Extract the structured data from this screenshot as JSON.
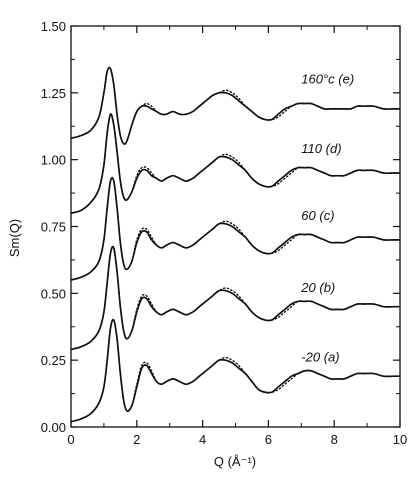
{
  "chart_data": {
    "type": "line",
    "title": "",
    "xlabel": "Q (Å⁻¹)",
    "ylabel": "Sm(Q)",
    "xlim": [
      0,
      10
    ],
    "ylim": [
      0,
      1.5
    ],
    "xticks": [
      "0",
      "2",
      "4",
      "6",
      "8",
      "10"
    ],
    "yticks": [
      "0.00",
      "0.25",
      "0.50",
      "0.75",
      "1.00",
      "1.25",
      "1.50"
    ],
    "grid": false,
    "legend": "none",
    "styles": {
      "solid": "solid",
      "dotted": "dotted"
    },
    "series": [
      {
        "label": "-20   (a)",
        "x": [
          0.0,
          0.3,
          0.6,
          0.85,
          1.0,
          1.1,
          1.2,
          1.3,
          1.4,
          1.5,
          1.6,
          1.7,
          1.85,
          2.0,
          2.15,
          2.3,
          2.45,
          2.6,
          2.75,
          2.9,
          3.1,
          3.3,
          3.5,
          3.7,
          3.9,
          4.1,
          4.3,
          4.5,
          4.7,
          4.9,
          5.1,
          5.3,
          5.5,
          5.7,
          5.9,
          6.1,
          6.3,
          6.5,
          6.7,
          6.9,
          7.1,
          7.3,
          7.5,
          7.7,
          7.9,
          8.1,
          8.3,
          8.5,
          8.7,
          8.9,
          9.2,
          9.5,
          9.8,
          10.0
        ],
        "solid": [
          0.02,
          0.03,
          0.05,
          0.09,
          0.15,
          0.25,
          0.37,
          0.4,
          0.33,
          0.2,
          0.1,
          0.06,
          0.08,
          0.15,
          0.22,
          0.23,
          0.2,
          0.17,
          0.16,
          0.17,
          0.18,
          0.17,
          0.16,
          0.17,
          0.19,
          0.21,
          0.23,
          0.25,
          0.25,
          0.24,
          0.22,
          0.2,
          0.17,
          0.14,
          0.13,
          0.13,
          0.15,
          0.17,
          0.19,
          0.2,
          0.21,
          0.21,
          0.2,
          0.19,
          0.18,
          0.18,
          0.18,
          0.19,
          0.2,
          0.2,
          0.2,
          0.19,
          0.19,
          0.19
        ],
        "dotted": [
          0.02,
          0.03,
          0.05,
          0.09,
          0.15,
          0.25,
          0.37,
          0.4,
          0.33,
          0.2,
          0.1,
          0.06,
          0.08,
          0.16,
          0.23,
          0.24,
          0.21,
          0.17,
          0.16,
          0.17,
          0.18,
          0.17,
          0.16,
          0.17,
          0.19,
          0.21,
          0.23,
          0.25,
          0.26,
          0.25,
          0.23,
          0.2,
          0.17,
          0.14,
          0.13,
          0.13,
          0.14,
          0.16,
          0.18,
          0.2,
          0.21,
          0.21,
          0.2,
          0.19,
          0.18,
          0.18,
          0.18,
          0.19,
          0.2,
          0.2,
          0.2,
          0.19,
          0.19,
          0.19
        ]
      },
      {
        "label": "20   (b)",
        "x": [
          0.0,
          0.3,
          0.6,
          0.85,
          1.0,
          1.1,
          1.2,
          1.3,
          1.4,
          1.5,
          1.6,
          1.7,
          1.85,
          2.0,
          2.15,
          2.3,
          2.45,
          2.6,
          2.75,
          2.9,
          3.1,
          3.3,
          3.5,
          3.7,
          3.9,
          4.1,
          4.3,
          4.5,
          4.7,
          4.9,
          5.1,
          5.3,
          5.5,
          5.7,
          5.9,
          6.1,
          6.3,
          6.5,
          6.7,
          6.9,
          7.1,
          7.3,
          7.5,
          7.7,
          7.9,
          8.1,
          8.3,
          8.5,
          8.7,
          8.9,
          9.2,
          9.5,
          9.8,
          10.0
        ],
        "solid": [
          0.29,
          0.3,
          0.32,
          0.36,
          0.43,
          0.54,
          0.65,
          0.67,
          0.58,
          0.45,
          0.36,
          0.33,
          0.36,
          0.43,
          0.48,
          0.48,
          0.45,
          0.43,
          0.42,
          0.43,
          0.44,
          0.43,
          0.42,
          0.43,
          0.45,
          0.47,
          0.49,
          0.51,
          0.51,
          0.5,
          0.48,
          0.46,
          0.43,
          0.41,
          0.4,
          0.4,
          0.42,
          0.44,
          0.46,
          0.47,
          0.47,
          0.47,
          0.46,
          0.45,
          0.44,
          0.44,
          0.44,
          0.45,
          0.46,
          0.46,
          0.46,
          0.45,
          0.45,
          0.45
        ],
        "dotted": [
          0.29,
          0.3,
          0.32,
          0.36,
          0.43,
          0.54,
          0.65,
          0.67,
          0.58,
          0.45,
          0.36,
          0.33,
          0.36,
          0.44,
          0.49,
          0.49,
          0.46,
          0.43,
          0.42,
          0.43,
          0.44,
          0.43,
          0.42,
          0.43,
          0.45,
          0.47,
          0.49,
          0.51,
          0.52,
          0.51,
          0.49,
          0.46,
          0.43,
          0.41,
          0.4,
          0.4,
          0.41,
          0.43,
          0.45,
          0.47,
          0.47,
          0.47,
          0.46,
          0.45,
          0.44,
          0.44,
          0.44,
          0.45,
          0.46,
          0.46,
          0.46,
          0.45,
          0.45,
          0.45
        ]
      },
      {
        "label": "60   (c)",
        "x": [
          0.0,
          0.3,
          0.6,
          0.85,
          1.0,
          1.1,
          1.2,
          1.3,
          1.4,
          1.5,
          1.6,
          1.7,
          1.85,
          2.0,
          2.15,
          2.3,
          2.45,
          2.6,
          2.75,
          2.9,
          3.1,
          3.3,
          3.5,
          3.7,
          3.9,
          4.1,
          4.3,
          4.5,
          4.7,
          4.9,
          5.1,
          5.3,
          5.5,
          5.7,
          5.9,
          6.1,
          6.3,
          6.5,
          6.7,
          6.9,
          7.1,
          7.3,
          7.5,
          7.7,
          7.9,
          8.1,
          8.3,
          8.5,
          8.7,
          8.9,
          9.2,
          9.5,
          9.8,
          10.0
        ],
        "solid": [
          0.55,
          0.56,
          0.58,
          0.62,
          0.7,
          0.82,
          0.92,
          0.92,
          0.82,
          0.69,
          0.61,
          0.59,
          0.62,
          0.69,
          0.73,
          0.73,
          0.7,
          0.68,
          0.67,
          0.68,
          0.69,
          0.68,
          0.67,
          0.68,
          0.7,
          0.72,
          0.74,
          0.76,
          0.76,
          0.75,
          0.73,
          0.71,
          0.68,
          0.66,
          0.65,
          0.65,
          0.67,
          0.69,
          0.71,
          0.72,
          0.72,
          0.72,
          0.71,
          0.7,
          0.69,
          0.69,
          0.69,
          0.7,
          0.71,
          0.71,
          0.71,
          0.7,
          0.7,
          0.7
        ],
        "dotted": [
          0.55,
          0.56,
          0.58,
          0.62,
          0.7,
          0.82,
          0.92,
          0.92,
          0.82,
          0.69,
          0.61,
          0.59,
          0.62,
          0.7,
          0.74,
          0.74,
          0.71,
          0.68,
          0.67,
          0.68,
          0.69,
          0.68,
          0.67,
          0.68,
          0.7,
          0.72,
          0.74,
          0.76,
          0.77,
          0.76,
          0.74,
          0.71,
          0.68,
          0.66,
          0.65,
          0.65,
          0.66,
          0.68,
          0.7,
          0.72,
          0.72,
          0.72,
          0.71,
          0.7,
          0.69,
          0.69,
          0.69,
          0.7,
          0.71,
          0.71,
          0.71,
          0.7,
          0.7,
          0.7
        ]
      },
      {
        "label": "110   (d)",
        "x": [
          0.0,
          0.3,
          0.6,
          0.85,
          1.0,
          1.1,
          1.2,
          1.3,
          1.4,
          1.5,
          1.6,
          1.7,
          1.85,
          2.0,
          2.15,
          2.3,
          2.45,
          2.6,
          2.75,
          2.9,
          3.1,
          3.3,
          3.5,
          3.7,
          3.9,
          4.1,
          4.3,
          4.5,
          4.7,
          4.9,
          5.1,
          5.3,
          5.5,
          5.7,
          5.9,
          6.1,
          6.3,
          6.5,
          6.7,
          6.9,
          7.1,
          7.3,
          7.5,
          7.7,
          7.9,
          8.1,
          8.3,
          8.5,
          8.7,
          8.9,
          9.2,
          9.5,
          9.8,
          10.0
        ],
        "solid": [
          0.8,
          0.81,
          0.84,
          0.89,
          0.98,
          1.1,
          1.17,
          1.13,
          1.03,
          0.92,
          0.86,
          0.85,
          0.88,
          0.93,
          0.96,
          0.96,
          0.94,
          0.93,
          0.92,
          0.93,
          0.94,
          0.93,
          0.92,
          0.93,
          0.95,
          0.97,
          0.99,
          1.01,
          1.01,
          1.0,
          0.98,
          0.96,
          0.93,
          0.91,
          0.9,
          0.9,
          0.92,
          0.94,
          0.96,
          0.97,
          0.97,
          0.97,
          0.96,
          0.95,
          0.94,
          0.94,
          0.94,
          0.95,
          0.96,
          0.96,
          0.96,
          0.95,
          0.95,
          0.95
        ],
        "dotted": [
          0.8,
          0.81,
          0.84,
          0.89,
          0.98,
          1.1,
          1.17,
          1.13,
          1.03,
          0.92,
          0.86,
          0.85,
          0.88,
          0.94,
          0.97,
          0.97,
          0.95,
          0.93,
          0.92,
          0.93,
          0.94,
          0.93,
          0.92,
          0.93,
          0.95,
          0.97,
          0.99,
          1.01,
          1.02,
          1.01,
          0.99,
          0.96,
          0.93,
          0.91,
          0.9,
          0.9,
          0.91,
          0.93,
          0.95,
          0.97,
          0.97,
          0.97,
          0.96,
          0.95,
          0.94,
          0.94,
          0.94,
          0.95,
          0.96,
          0.96,
          0.96,
          0.95,
          0.95,
          0.95
        ]
      },
      {
        "label": "160°c (e)",
        "x": [
          0.0,
          0.3,
          0.6,
          0.85,
          1.0,
          1.1,
          1.2,
          1.3,
          1.4,
          1.5,
          1.6,
          1.7,
          1.85,
          2.0,
          2.15,
          2.3,
          2.45,
          2.6,
          2.75,
          2.9,
          3.1,
          3.3,
          3.5,
          3.7,
          3.9,
          4.1,
          4.3,
          4.5,
          4.7,
          4.9,
          5.1,
          5.3,
          5.5,
          5.7,
          5.9,
          6.1,
          6.3,
          6.5,
          6.7,
          6.9,
          7.1,
          7.3,
          7.5,
          7.7,
          7.9,
          8.1,
          8.3,
          8.5,
          8.7,
          8.9,
          9.2,
          9.5,
          9.8,
          10.0
        ],
        "solid": [
          1.08,
          1.09,
          1.11,
          1.16,
          1.25,
          1.33,
          1.34,
          1.28,
          1.17,
          1.09,
          1.06,
          1.07,
          1.13,
          1.18,
          1.2,
          1.2,
          1.19,
          1.18,
          1.17,
          1.17,
          1.18,
          1.17,
          1.17,
          1.18,
          1.2,
          1.22,
          1.24,
          1.25,
          1.25,
          1.24,
          1.22,
          1.2,
          1.18,
          1.16,
          1.15,
          1.15,
          1.17,
          1.19,
          1.2,
          1.21,
          1.21,
          1.21,
          1.2,
          1.19,
          1.19,
          1.19,
          1.19,
          1.19,
          1.2,
          1.2,
          1.2,
          1.19,
          1.19,
          1.19
        ],
        "dotted": [
          1.08,
          1.09,
          1.11,
          1.16,
          1.25,
          1.33,
          1.34,
          1.28,
          1.17,
          1.09,
          1.06,
          1.07,
          1.13,
          1.18,
          1.2,
          1.21,
          1.2,
          1.18,
          1.17,
          1.17,
          1.18,
          1.17,
          1.17,
          1.18,
          1.2,
          1.22,
          1.24,
          1.25,
          1.26,
          1.25,
          1.23,
          1.2,
          1.18,
          1.16,
          1.15,
          1.15,
          1.16,
          1.18,
          1.2,
          1.21,
          1.21,
          1.21,
          1.2,
          1.19,
          1.19,
          1.19,
          1.19,
          1.19,
          1.2,
          1.2,
          1.2,
          1.19,
          1.19,
          1.19
        ]
      }
    ]
  }
}
